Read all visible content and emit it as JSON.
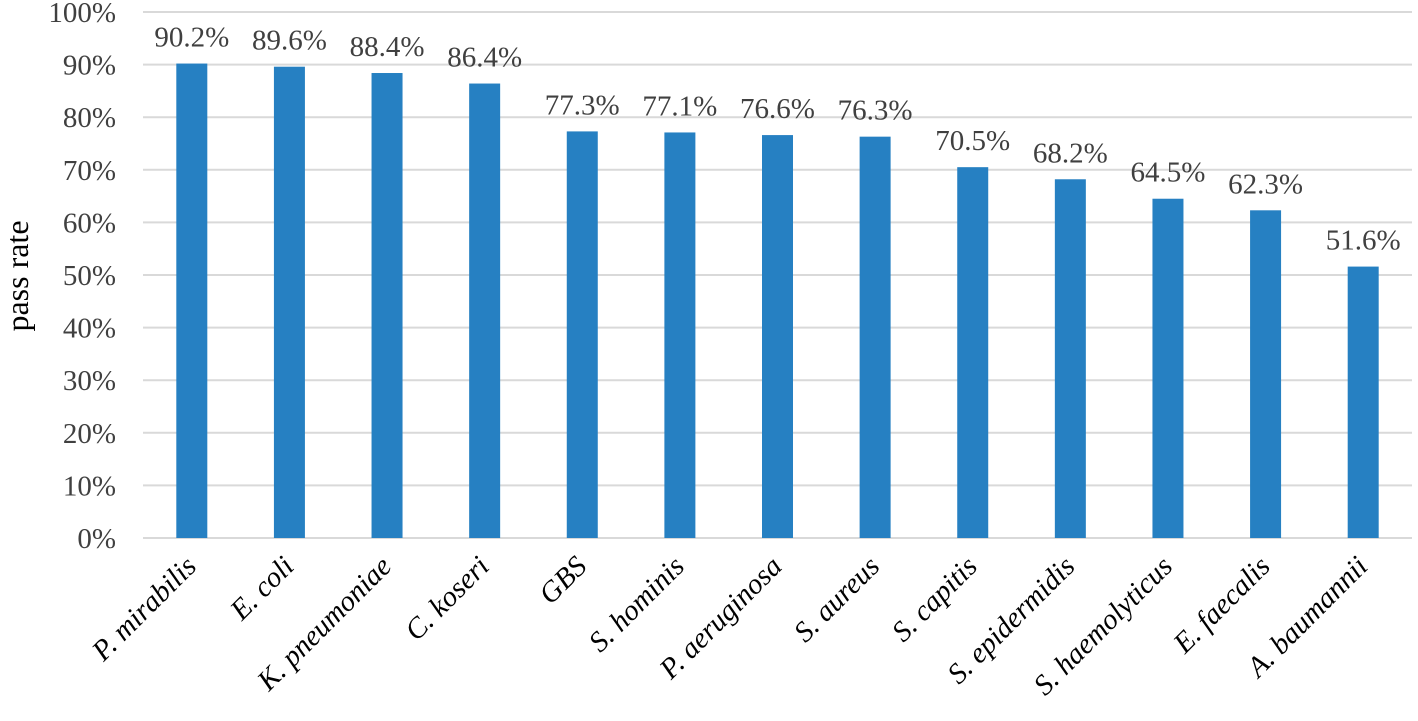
{
  "chart_data": {
    "type": "bar",
    "title": "",
    "xlabel": "",
    "ylabel": "pass rate",
    "ylim": [
      0,
      100
    ],
    "yticks": [
      "0%",
      "10%",
      "20%",
      "30%",
      "40%",
      "50%",
      "60%",
      "70%",
      "80%",
      "90%",
      "100%"
    ],
    "grid": true,
    "bar_color": "#2680c2",
    "categories": [
      "P. mirabilis",
      "E. coli",
      "K. pneumoniae",
      "C. koseri",
      "GBS",
      "S. hominis",
      "P. aeruginosa",
      "S. aureus",
      "S. capitis",
      "S. epidermidis",
      "S. haemolyticus",
      "E. faecalis",
      "A. baumannii"
    ],
    "values": [
      90.2,
      89.6,
      88.4,
      86.4,
      77.3,
      77.1,
      76.6,
      76.3,
      70.5,
      68.2,
      64.5,
      62.3,
      51.6
    ],
    "data_labels": [
      "90.2%",
      "89.6%",
      "88.4%",
      "86.4%",
      "77.3%",
      "77.1%",
      "76.6%",
      "76.3%",
      "70.5%",
      "68.2%",
      "64.5%",
      "62.3%",
      "51.6%"
    ]
  }
}
